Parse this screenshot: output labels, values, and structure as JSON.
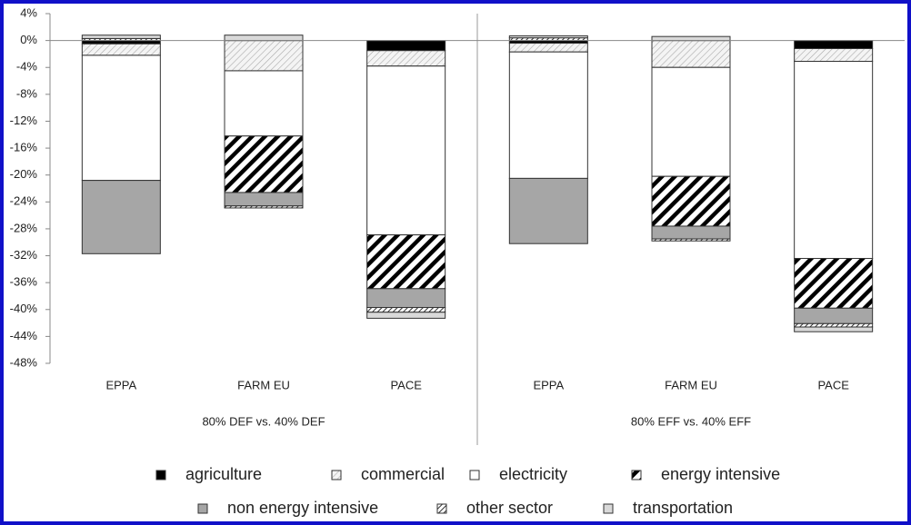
{
  "chart_data": {
    "type": "stacked-bar",
    "categories": [
      "EPPA",
      "FARM EU",
      "PACE",
      "EPPA",
      "FARM EU",
      "PACE"
    ],
    "groups": [
      {
        "label": "80% DEF vs. 40% DEF",
        "size": 3
      },
      {
        "label": "80% EFF vs. 40% EFF",
        "size": 3
      }
    ],
    "series": [
      {
        "name": "agriculture",
        "color": "#000000",
        "pattern": "solid",
        "values": [
          -0.5,
          0,
          -1.5,
          -0.4,
          0,
          -1.2
        ]
      },
      {
        "name": "commercial",
        "color": "#e8e8e8",
        "pattern": "light-hatch",
        "values": [
          -1.7,
          -4.5,
          -2.3,
          -1.3,
          -4.0,
          -1.9
        ]
      },
      {
        "name": "electricity",
        "color": "#ffffff",
        "pattern": "solid",
        "values": [
          -18.6,
          -9.7,
          -25.1,
          -18.8,
          -16.2,
          -29.3
        ]
      },
      {
        "name": "energy intensive",
        "color": "#000000",
        "pattern": "heavy-hatch",
        "values": [
          0,
          -8.4,
          -8.0,
          0,
          -7.4,
          -7.4
        ]
      },
      {
        "name": "non energy intensive",
        "color": "#a6a6a6",
        "pattern": "solid",
        "values": [
          -10.9,
          -2.0,
          -2.8,
          -9.7,
          -1.9,
          -2.3
        ]
      },
      {
        "name": "other sector",
        "color": "#555555",
        "pattern": "medium-hatch",
        "values": [
          0.3,
          -0.3,
          -0.7,
          0.4,
          -0.3,
          -0.5
        ]
      },
      {
        "name": "transportation",
        "color": "#d9d9d9",
        "pattern": "solid",
        "values": [
          0.5,
          0.8,
          -0.9,
          0.3,
          0.6,
          -0.7
        ]
      }
    ],
    "ylim": [
      -48,
      4
    ],
    "yticks": [
      {
        "value": 4,
        "label": "4%"
      },
      {
        "value": 0,
        "label": "0%"
      },
      {
        "value": -4,
        "label": "-4%"
      },
      {
        "value": -8,
        "label": "-8%"
      },
      {
        "value": -12,
        "label": "-12%"
      },
      {
        "value": -16,
        "label": "-16%"
      },
      {
        "value": -20,
        "label": "-20%"
      },
      {
        "value": -24,
        "label": "-24%"
      },
      {
        "value": -28,
        "label": "-28%"
      },
      {
        "value": -32,
        "label": "-32%"
      },
      {
        "value": -36,
        "label": "-36%"
      },
      {
        "value": -40,
        "label": "-40%"
      },
      {
        "value": -44,
        "label": "-44%"
      },
      {
        "value": -48,
        "label": "-48%"
      }
    ],
    "legend": "bottom"
  }
}
